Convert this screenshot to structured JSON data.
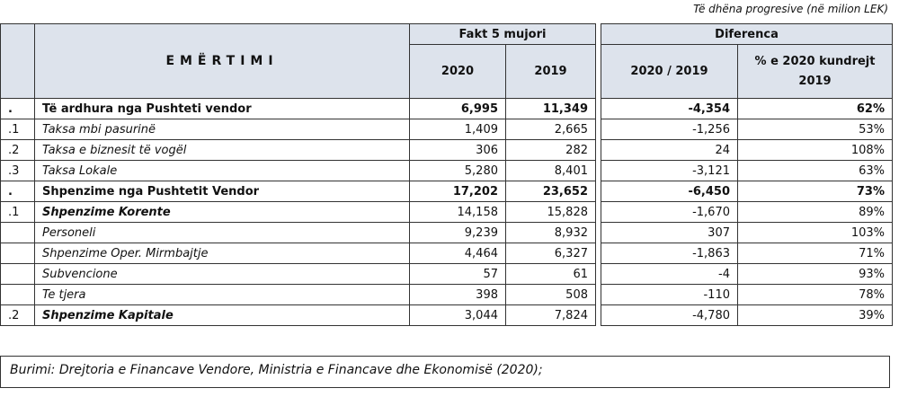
{
  "note": "Të dhëna progresive (në milion LEK)",
  "header": {
    "name": "EMËRTIMI",
    "group1": "Fakt 5 mujori",
    "group2": "Diferenca",
    "col_2020": "2020",
    "col_2019": "2019",
    "col_diff": "2020 / 2019",
    "col_pct": "% e 2020 kundrejt 2019"
  },
  "rows": [
    {
      "idx": ".",
      "name": "Të ardhura nga Pushteti vendor",
      "style": "bold",
      "v2020": "6,995",
      "v2019": "11,349",
      "diff": "-4,354",
      "pct": "62%"
    },
    {
      "idx": ".1",
      "name": "Taksa mbi pasurinë",
      "style": "italic",
      "v2020": "1,409",
      "v2019": "2,665",
      "diff": "-1,256",
      "pct": "53%"
    },
    {
      "idx": ".2",
      "name": "Taksa e biznesit të vogël",
      "style": "italic",
      "v2020": "306",
      "v2019": "282",
      "diff": "24",
      "pct": "108%"
    },
    {
      "idx": ".3",
      "name": "Taksa Lokale",
      "style": "italic",
      "v2020": "5,280",
      "v2019": "8,401",
      "diff": "-3,121",
      "pct": "63%"
    },
    {
      "idx": ".",
      "name": "Shpenzime nga Pushtetit Vendor",
      "style": "bold",
      "v2020": "17,202",
      "v2019": "23,652",
      "diff": "-6,450",
      "pct": "73%"
    },
    {
      "idx": ".1",
      "name": "Shpenzime Korente",
      "style": "bold-italic",
      "v2020": "14,158",
      "v2019": "15,828",
      "diff": "-1,670",
      "pct": "89%"
    },
    {
      "idx": null,
      "name": "Personeli",
      "style": "italic",
      "v2020": "9,239",
      "v2019": "8,932",
      "diff": "307",
      "pct": "103%"
    },
    {
      "idx": null,
      "name": "Shpenzime Oper. Mirmbajtje",
      "style": "italic",
      "v2020": "4,464",
      "v2019": "6,327",
      "diff": "-1,863",
      "pct": "71%"
    },
    {
      "idx": null,
      "name": "Subvencione",
      "style": "italic",
      "v2020": "57",
      "v2019": "61",
      "diff": "-4",
      "pct": "93%"
    },
    {
      "idx": null,
      "name": "Te tjera",
      "style": "italic",
      "v2020": "398",
      "v2019": "508",
      "diff": "-110",
      "pct": "78%"
    },
    {
      "idx": ".2",
      "name": "Shpenzime Kapitale",
      "style": "bold-italic",
      "v2020": "3,044",
      "v2019": "7,824",
      "diff": "-4,780",
      "pct": "39%"
    }
  ],
  "source": "Burimi: Drejtoria e Financave Vendore, Ministria e Financave dhe Ekonomisë (2020);"
}
